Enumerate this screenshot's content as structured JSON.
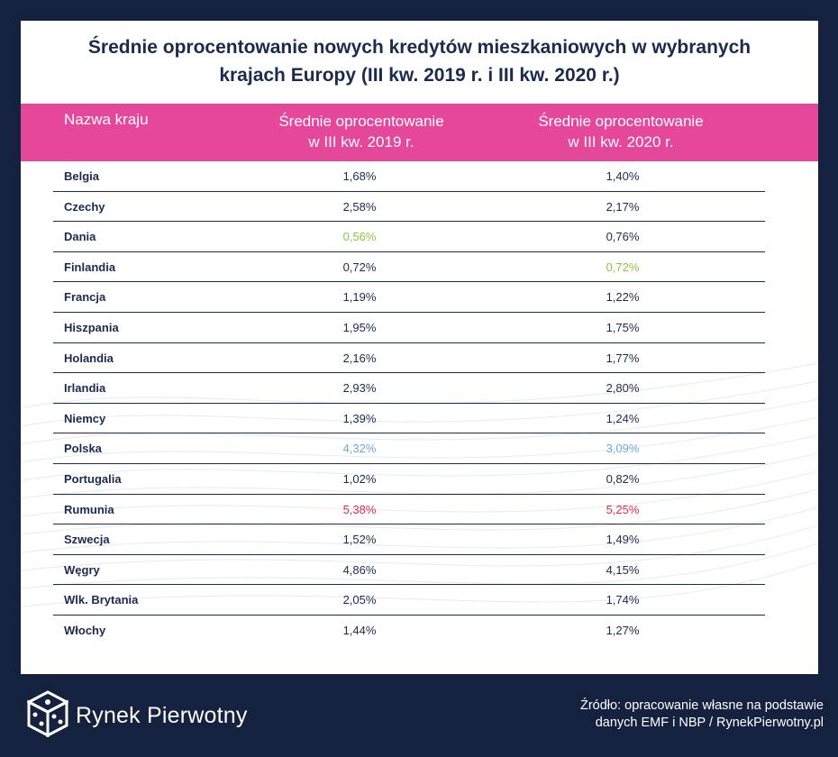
{
  "title": {
    "line1": "Średnie oprocentowanie nowych kredytów mieszkaniowych w wybranych",
    "line2": "krajach Europy (III kw. 2019 r. i III kw. 2020 r.)"
  },
  "table": {
    "headers": {
      "country": "Nazwa kraju",
      "col1_line1": "Średnie oprocentowanie",
      "col1_line2": "w III kw. 2019 r.",
      "col2_line1": "Średnie oprocentowanie",
      "col2_line2": "w III kw. 2020 r."
    },
    "rows": [
      {
        "country": "Belgia",
        "v2019": "1,68%",
        "v2020": "1,40%"
      },
      {
        "country": "Czechy",
        "v2019": "2,58%",
        "v2020": "2,17%"
      },
      {
        "country": "Dania",
        "v2019": "0,56%",
        "v2020": "0,76%",
        "h2019": "green"
      },
      {
        "country": "Finlandia",
        "v2019": "0,72%",
        "v2020": "0,72%",
        "h2020": "green"
      },
      {
        "country": "Francja",
        "v2019": "1,19%",
        "v2020": "1,22%"
      },
      {
        "country": "Hiszpania",
        "v2019": "1,95%",
        "v2020": "1,75%"
      },
      {
        "country": "Holandia",
        "v2019": "2,16%",
        "v2020": "1,77%"
      },
      {
        "country": "Irlandia",
        "v2019": "2,93%",
        "v2020": "2,80%"
      },
      {
        "country": "Niemcy",
        "v2019": "1,39%",
        "v2020": "1,24%"
      },
      {
        "country": "Polska",
        "v2019": "4,32%",
        "v2020": "3,09%",
        "h2019": "blue",
        "h2020": "blue"
      },
      {
        "country": "Portugalia",
        "v2019": "1,02%",
        "v2020": "0,82%"
      },
      {
        "country": "Rumunia",
        "v2019": "5,38%",
        "v2020": "5,25%",
        "h2019": "red",
        "h2020": "red"
      },
      {
        "country": "Szwecja",
        "v2019": "1,52%",
        "v2020": "1,49%"
      },
      {
        "country": "Węgry",
        "v2019": "4,86%",
        "v2020": "4,15%"
      },
      {
        "country": "Wlk. Brytania",
        "v2019": "2,05%",
        "v2020": "1,74%"
      },
      {
        "country": "Włochy",
        "v2019": "1,44%",
        "v2020": "1,27%"
      }
    ]
  },
  "highlight_colors": {
    "green": "#8cc63f",
    "blue": "#6fa8dc",
    "red": "#e8294a"
  },
  "colors": {
    "header_bg": "#e5479a",
    "page_bg": "#14213f",
    "text": "#1b2a4e"
  },
  "footer": {
    "brand": "Rynek Pierwotny",
    "logo_icon": "dice-logo-icon",
    "source_line1": "Źródło: opracowanie  własne na podstawie",
    "source_line2": "danych EMF i NBP / RynekPierwotny.pl"
  }
}
